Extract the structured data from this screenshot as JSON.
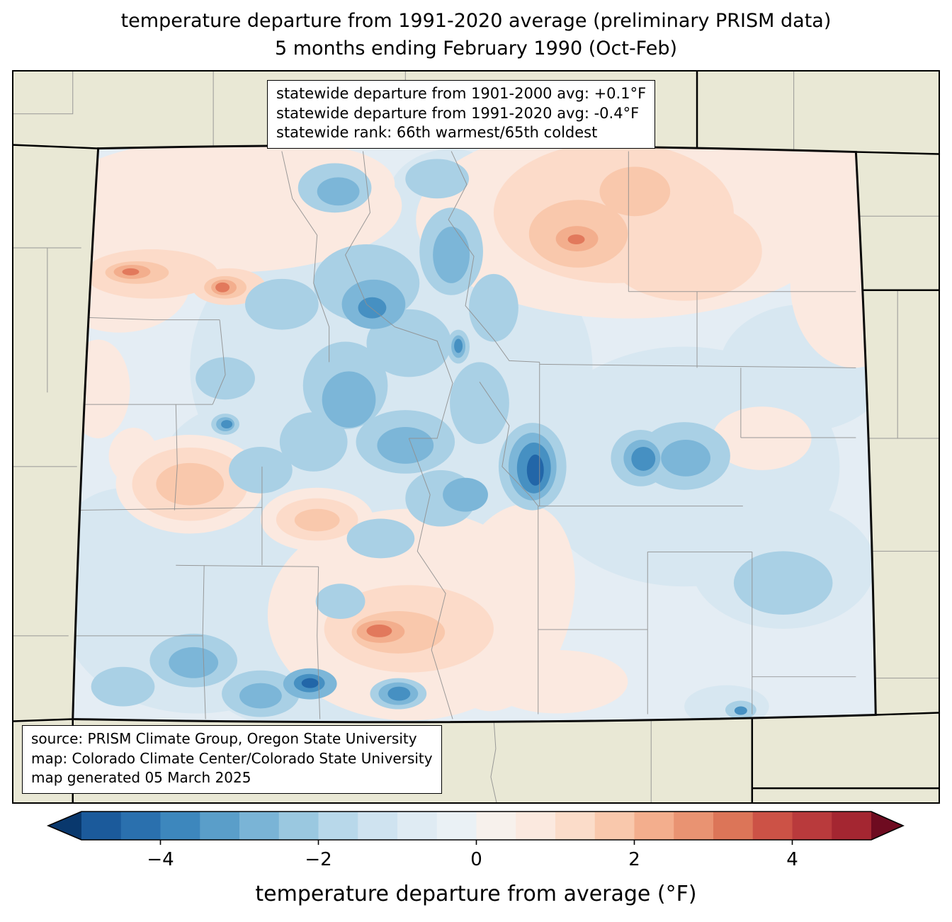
{
  "title": {
    "line1": "temperature departure from 1991-2020 average (preliminary PRISM data)",
    "line2": "5 months ending February 1990 (Oct-Feb)"
  },
  "stats_box": {
    "line1": "statewide departure from 1901-2000 avg: +0.1°F",
    "line2": "statewide departure from 1991-2020 avg: -0.4°F",
    "line3": "statewide rank: 66th warmest/65th coldest"
  },
  "source_box": {
    "line1": "source: PRISM Climate Group, Oregon State University",
    "line2": "map: Colorado Climate Center/Colorado State University",
    "line3": "map generated 05 March 2025"
  },
  "colorbar": {
    "label": "temperature departure from average (°F)",
    "range": [
      -5,
      5
    ],
    "ticks": [
      {
        "value": -4,
        "label": "−4"
      },
      {
        "value": -2,
        "label": "−2"
      },
      {
        "value": 0,
        "label": "0"
      },
      {
        "value": 2,
        "label": "2"
      },
      {
        "value": 4,
        "label": "4"
      }
    ],
    "under_color": "#09386d",
    "over_color": "#6e0b20",
    "segment_colors": [
      "#1b5a9b",
      "#2a70ae",
      "#3d87bd",
      "#5a9ec9",
      "#7ab4d6",
      "#9ac8e0",
      "#b8d8ea",
      "#cfe3f0",
      "#dfebf3",
      "#eaf1f5",
      "#f7f1ec",
      "#fbe9df",
      "#fbdcc9",
      "#f9c8ac",
      "#f3ae8d",
      "#e99372",
      "#dc7558",
      "#cc5246",
      "#b93a3c",
      "#a42631"
    ]
  },
  "map_colors": {
    "outside_background": "#e9e8d5",
    "state_border": "#0a0a0a",
    "county_lines": "#909090",
    "base_fill": "#e4edf4"
  }
}
